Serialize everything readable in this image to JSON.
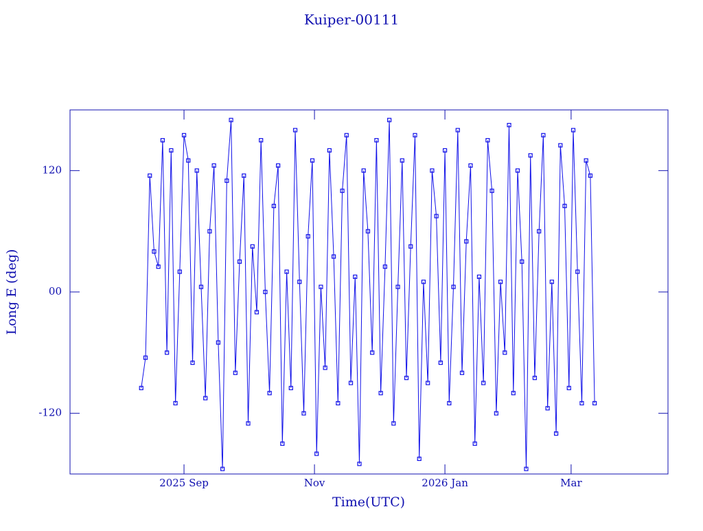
{
  "chart_data": {
    "type": "line",
    "title": "Kuiper-00111",
    "x_label": "Time(UTC)",
    "y_label": "Long E (deg)",
    "x": [
      -20,
      -18,
      -16,
      -14,
      -12,
      -10,
      -8,
      -6,
      -4,
      -2,
      0,
      2,
      4,
      6,
      8,
      10,
      12,
      14,
      16,
      18,
      20,
      22,
      24,
      26,
      28,
      30,
      32,
      34,
      36,
      38,
      40,
      42,
      44,
      46,
      48,
      50,
      52,
      54,
      56,
      58,
      60,
      62,
      64,
      66,
      68,
      70,
      72,
      74,
      76,
      78,
      80,
      82,
      84,
      86,
      88,
      90,
      92,
      94,
      96,
      98,
      100,
      102,
      104,
      106,
      108,
      110,
      112,
      114,
      116,
      118,
      120,
      122,
      124,
      126,
      128,
      130,
      132,
      134,
      136,
      138,
      140,
      142,
      144,
      146,
      148,
      150,
      152,
      154,
      156,
      158,
      160,
      162,
      164,
      166,
      168,
      170,
      172,
      174,
      176,
      178,
      180,
      182,
      184,
      186,
      188,
      190,
      192
    ],
    "series": [
      {
        "name": "Kuiper-00111",
        "color": "#1010e8",
        "values": [
          -95,
          -65,
          115,
          40,
          25,
          150,
          -60,
          140,
          -110,
          20,
          155,
          130,
          -70,
          120,
          5,
          -105,
          60,
          125,
          -50,
          -175,
          110,
          170,
          -80,
          30,
          115,
          -130,
          45,
          -20,
          150,
          0,
          -100,
          85,
          125,
          -150,
          20,
          -95,
          160,
          10,
          -120,
          55,
          130,
          -160,
          5,
          -75,
          140,
          35,
          -110,
          100,
          155,
          -90,
          15,
          -170,
          120,
          60,
          -60,
          150,
          -100,
          25,
          170,
          -130,
          5,
          130,
          -85,
          45,
          155,
          -165,
          10,
          -90,
          120,
          75,
          -70,
          140,
          -110,
          5,
          160,
          -80,
          50,
          125,
          -150,
          15,
          -90,
          150,
          100,
          -120,
          10,
          -60,
          165,
          -100,
          120,
          30,
          -175,
          135,
          -85,
          60,
          155,
          -115,
          10,
          -140,
          145,
          85,
          -95,
          160,
          20,
          -110,
          130,
          115,
          -110
        ]
      }
    ],
    "xlim": [
      -53.3,
      226.3
    ],
    "ylim": [
      -180,
      180
    ],
    "xticks": [
      {
        "value": 0,
        "label": "2025 Sep"
      },
      {
        "value": 61,
        "label": "Nov"
      },
      {
        "value": 122,
        "label": "2026 Jan"
      },
      {
        "value": 181,
        "label": "Mar"
      }
    ],
    "yticks": [
      -120,
      {
        "value": 0,
        "label": "00"
      },
      120
    ]
  }
}
